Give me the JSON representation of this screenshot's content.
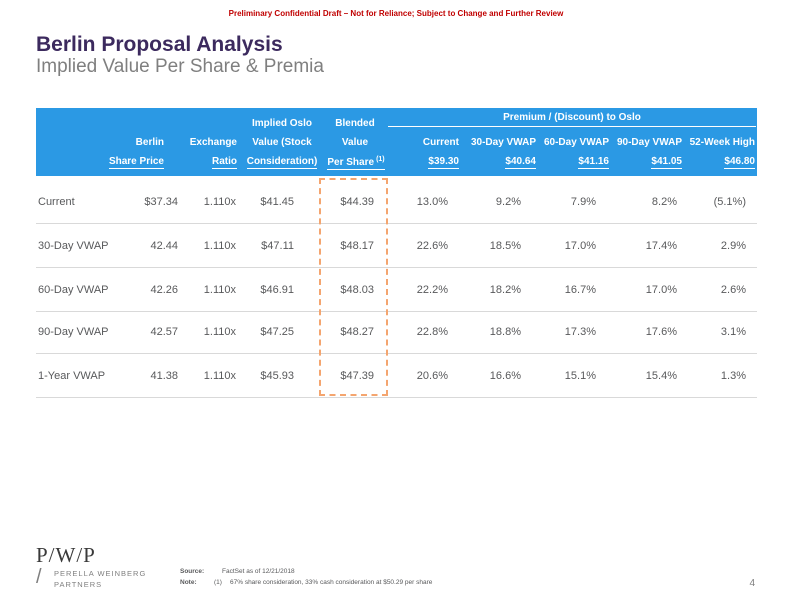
{
  "banner": "Preliminary Confidential Draft – Not for Reliance; Subject to Change and Further Review",
  "title": "Berlin Proposal Analysis",
  "subtitle": "Implied Value Per Share & Premia",
  "header": {
    "premium_group": "Premium / (Discount) to Oslo",
    "berlin_1": "Berlin",
    "berlin_2": "Share Price",
    "exchange_1": "Exchange",
    "exchange_2": "Ratio",
    "implied_1": "Implied Oslo",
    "implied_2": "Value (Stock",
    "implied_3": "Consideration)",
    "blended_1": "Blended",
    "blended_2": "Value",
    "blended_3": "Per Share",
    "blended_sup": "(1)",
    "current_1": "Current",
    "current_2": "$39.30",
    "vwap30_1": "30-Day VWAP",
    "vwap30_2": "$40.64",
    "vwap60_1": "60-Day VWAP",
    "vwap60_2": "$41.16",
    "vwap90_1": "90-Day VWAP",
    "vwap90_2": "$41.05",
    "high52_1": "52-Week High",
    "high52_2": "$46.80"
  },
  "rows": [
    {
      "label": "Current",
      "price": "$37.34",
      "ratio": "1.110x",
      "implied": "$41.45",
      "blended": "$44.39",
      "p_current": "13.0%",
      "p_30": "9.2%",
      "p_60": "7.9%",
      "p_90": "8.2%",
      "p_52": "(5.1%)"
    },
    {
      "label": "30-Day VWAP",
      "price": "42.44",
      "ratio": "1.110x",
      "implied": "$47.11",
      "blended": "$48.17",
      "p_current": "22.6%",
      "p_30": "18.5%",
      "p_60": "17.0%",
      "p_90": "17.4%",
      "p_52": "2.9%"
    },
    {
      "label": "60-Day VWAP",
      "price": "42.26",
      "ratio": "1.110x",
      "implied": "$46.91",
      "blended": "$48.03",
      "p_current": "22.2%",
      "p_30": "18.2%",
      "p_60": "16.7%",
      "p_90": "17.0%",
      "p_52": "2.6%"
    },
    {
      "label": "90-Day VWAP",
      "price": "42.57",
      "ratio": "1.110x",
      "implied": "$47.25",
      "blended": "$48.27",
      "p_current": "22.8%",
      "p_30": "18.8%",
      "p_60": "17.3%",
      "p_90": "17.6%",
      "p_52": "3.1%"
    },
    {
      "label": "1-Year VWAP",
      "price": "41.38",
      "ratio": "1.110x",
      "implied": "$45.93",
      "blended": "$47.39",
      "p_current": "20.6%",
      "p_30": "16.6%",
      "p_60": "15.1%",
      "p_90": "15.4%",
      "p_52": "1.3%"
    }
  ],
  "logo": {
    "mark": "P/W/P",
    "slash": "/",
    "line1": "PERELLA WEINBERG",
    "line2": "PARTNERS"
  },
  "footnotes": {
    "source_label": "Source:",
    "source_text": "FactSet as of 12/21/2018",
    "note_label": "Note:",
    "note_num": "(1)",
    "note_text": "67% share consideration, 33% cash consideration at $50.29 per share"
  },
  "page_number": "4",
  "colors": {
    "header_bg": "#2b99e4",
    "title": "#3c2a5e",
    "banner": "#c00000",
    "highlight_dash": "#f4a56f"
  }
}
